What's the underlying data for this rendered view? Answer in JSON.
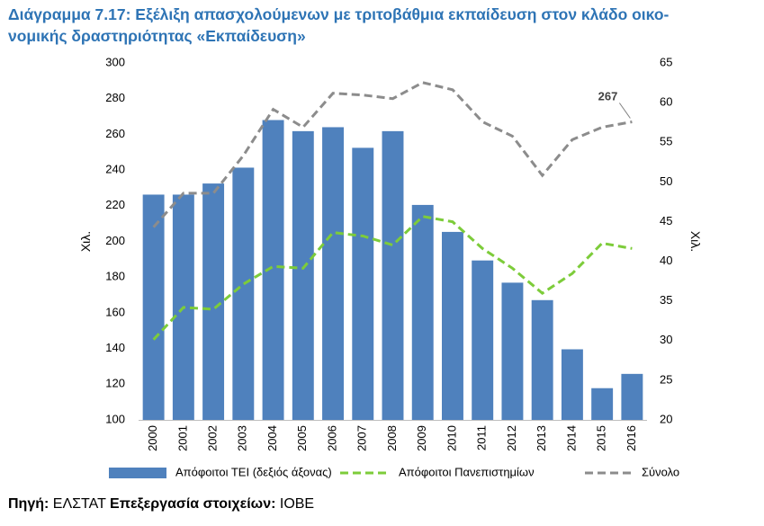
{
  "title": {
    "line1": "Διάγραμμα 7.17: Εξέλιξη απασχολούμενων με τριτοβάθμια εκπαίδευση στον κλάδο οικο-",
    "line2": "νομικής δραστηριότητας «Εκπαίδευση»"
  },
  "source": {
    "label1": "Πηγή:",
    "text1": " ΕΛΣΤΑΤ ",
    "label2": "Επεξεργασία στοιχείων:",
    "text2": " ΙΟΒΕ"
  },
  "colors": {
    "bars": "#4f81bd",
    "universities": "#7dcc3a",
    "total": "#8c8c8c",
    "title": "#2e74b5"
  },
  "chart_data": {
    "type": "bar",
    "categories": [
      "2000",
      "2001",
      "2002",
      "2003",
      "2004",
      "2005",
      "2006",
      "2007",
      "2008",
      "2009",
      "2010",
      "2011",
      "2012",
      "2013",
      "2014",
      "2015",
      "2016"
    ],
    "ylabel_left": "Χιλ.",
    "ylabel_right": "Χιλ.",
    "ylim_left": [
      100,
      300
    ],
    "yticks_left": [
      100,
      120,
      140,
      160,
      180,
      200,
      220,
      240,
      260,
      280,
      300
    ],
    "ylim_right": [
      20,
      65
    ],
    "yticks_right": [
      20,
      25,
      30,
      35,
      40,
      45,
      50,
      55,
      60,
      65
    ],
    "grid": false,
    "legend_position": "bottom",
    "series": [
      {
        "name": "Απόφοιτοι ΤΕΙ (δεξιός άξονας)",
        "type": "bar",
        "axis": "right",
        "values": [
          48.4,
          48.4,
          49.8,
          51.8,
          57.8,
          56.4,
          56.9,
          54.3,
          56.4,
          47.1,
          43.7,
          40.1,
          37.3,
          35.1,
          28.9,
          24.0,
          25.8
        ]
      },
      {
        "name": "Απόφοιτοι Πανεπιστημίων",
        "type": "line",
        "style": "dashed",
        "axis": "left",
        "values": [
          145,
          163,
          162,
          176,
          186,
          185,
          205,
          203,
          198,
          214,
          211,
          196,
          185,
          171,
          182,
          199,
          196
        ]
      },
      {
        "name": "Σύνολο",
        "type": "line",
        "style": "dashed",
        "axis": "left",
        "values": [
          208,
          227,
          227,
          248,
          274,
          264,
          283,
          282,
          280,
          289,
          285,
          267,
          259,
          237,
          257,
          264,
          267
        ]
      }
    ],
    "annotations": [
      {
        "text": "267",
        "series": "Σύνολο",
        "category": "2016"
      }
    ]
  }
}
